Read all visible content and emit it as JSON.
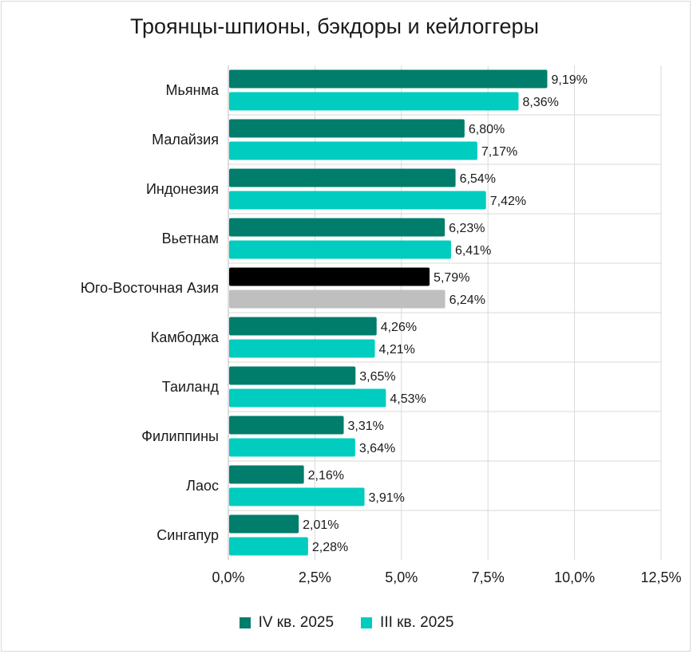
{
  "chart_data": {
    "type": "bar",
    "orientation": "horizontal",
    "title": "Троянцы-шпионы, бэкдоры и кейлоггеры",
    "categories": [
      "Мьянма",
      "Малайзия",
      "Индонезия",
      "Вьетнам",
      "Юго-Восточная Азия",
      "Камбоджа",
      "Таиланд",
      "Филиппины",
      "Лаос",
      "Сингапур"
    ],
    "series": [
      {
        "name": "IV кв. 2025",
        "color": "#007d6b",
        "values": [
          9.19,
          6.8,
          6.54,
          6.23,
          5.79,
          4.26,
          3.65,
          3.31,
          2.16,
          2.01
        ],
        "labels": [
          "9,19%",
          "6,80%",
          "6,54%",
          "6,23%",
          "5,79%",
          "4,26%",
          "3,65%",
          "3,31%",
          "2,16%",
          "2,01%"
        ]
      },
      {
        "name": "III кв. 2025",
        "color": "#00ccbf",
        "values": [
          8.36,
          7.17,
          7.42,
          6.41,
          6.24,
          4.21,
          4.53,
          3.64,
          3.91,
          2.28
        ],
        "labels": [
          "8,36%",
          "7,17%",
          "7,42%",
          "6,41%",
          "6,24%",
          "4,21%",
          "4,53%",
          "3,64%",
          "3,91%",
          "2,28%"
        ]
      }
    ],
    "highlight": {
      "category": "Юго-Восточная Азия",
      "colors": [
        "#000000",
        "#bfbfbf"
      ]
    },
    "xlim": [
      0,
      12.5
    ],
    "xticks": [
      "0,0%",
      "2,5%",
      "5,0%",
      "7,5%",
      "10,0%",
      "12,5%"
    ],
    "grid": true,
    "legend_position": "bottom"
  }
}
